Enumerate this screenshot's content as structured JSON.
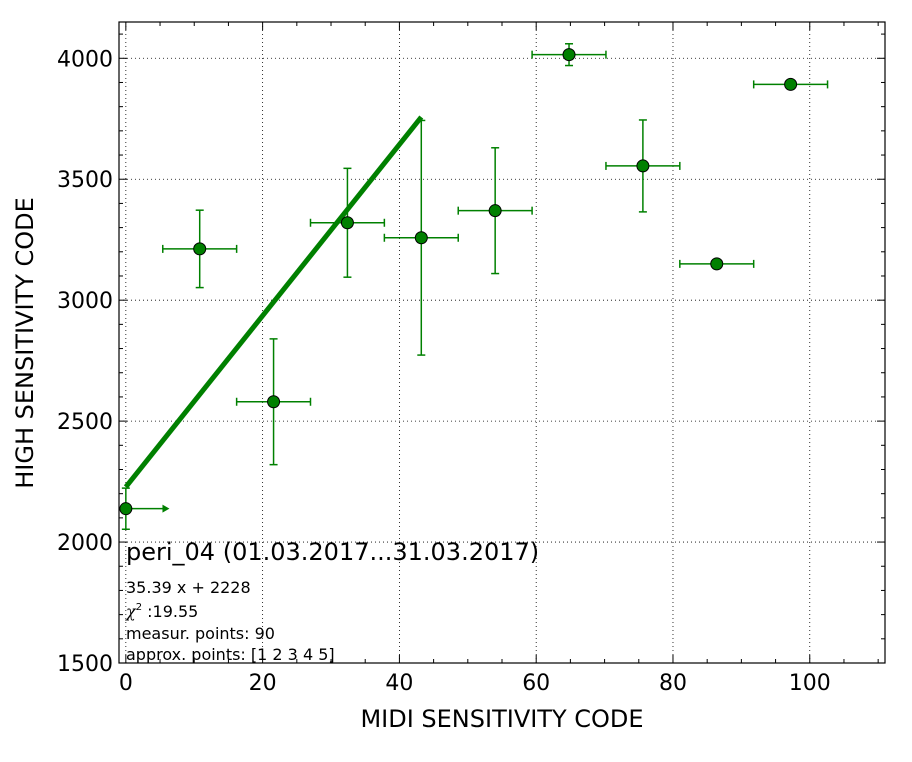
{
  "chart_data": {
    "type": "scatter",
    "xlabel": "MIDI SENSITIVITY CODE",
    "ylabel": "HIGH SENSITIVITY CODE",
    "xlim": [
      -1,
      111
    ],
    "ylim": [
      1500,
      4150
    ],
    "xticks": [
      "0",
      "20",
      "40",
      "60",
      "80",
      "100"
    ],
    "yticks": [
      "1500",
      "2000",
      "2500",
      "3000",
      "3500",
      "4000"
    ],
    "grid": true,
    "color": "#008000",
    "points": [
      {
        "x": 0,
        "y": 2138,
        "xerr_minus": 0,
        "xerr_plus": 5.5,
        "yerr": 85,
        "arrow_right": true
      },
      {
        "x": 10.8,
        "y": 3212,
        "xerr": 5.4,
        "yerr": 160
      },
      {
        "x": 21.6,
        "y": 2580,
        "xerr": 5.4,
        "yerr": 260
      },
      {
        "x": 32.4,
        "y": 3320,
        "xerr": 5.4,
        "yerr": 225
      },
      {
        "x": 43.2,
        "y": 3258,
        "xerr": 5.4,
        "yerr": 485
      },
      {
        "x": 54.0,
        "y": 3370,
        "xerr": 5.4,
        "yerr": 260
      },
      {
        "x": 64.8,
        "y": 4015,
        "xerr": 5.4,
        "yerr": 45
      },
      {
        "x": 75.6,
        "y": 3555,
        "xerr": 5.4,
        "yerr": 190
      },
      {
        "x": 86.4,
        "y": 3150,
        "xerr": 5.4,
        "yerr": 0
      },
      {
        "x": 97.2,
        "y": 3892,
        "xerr": 5.4,
        "yerr": 0
      }
    ],
    "fit": {
      "slope": 35.39,
      "intercept": 2228,
      "x_start": 0,
      "x_end": 43.2
    },
    "annotation": {
      "title": "peri_04 (01.03.2017...31.03.2017)",
      "equation": "35.39 x + 2228",
      "chi2_symbol": "χ",
      "chi2_sup": "2",
      "chi2": " :19.55",
      "measured": "measur. points: 90",
      "approx": "approx. points: [1 2 3 4 5]"
    }
  }
}
